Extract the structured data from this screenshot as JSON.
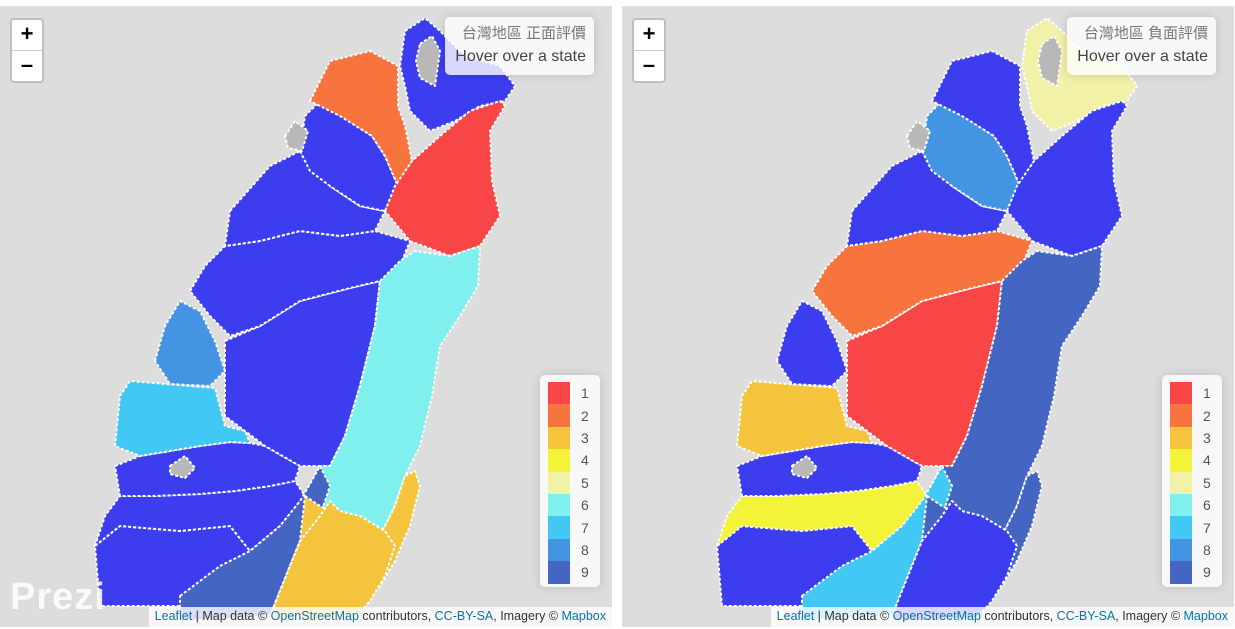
{
  "legend": {
    "items": [
      {
        "label": "1",
        "color": "#f84545"
      },
      {
        "label": "2",
        "color": "#f8743f"
      },
      {
        "label": "3",
        "color": "#f5c43d"
      },
      {
        "label": "4",
        "color": "#f3f33a"
      },
      {
        "label": "5",
        "color": "#f1f1a8"
      },
      {
        "label": "6",
        "color": "#7ff0ee"
      },
      {
        "label": "7",
        "color": "#41c8f5"
      },
      {
        "label": "8",
        "color": "#4394e3"
      },
      {
        "label": "9",
        "color": "#4565c3"
      }
    ]
  },
  "zoom": {
    "in_label": "+",
    "out_label": "–"
  },
  "maps": [
    {
      "id": "left",
      "title": "台灣地區 正面評價",
      "hint": "Hover over a state",
      "watermark": "Prezi",
      "region_colors": {
        "taipei_new": "#3d3df0",
        "taoyuan": "#f8743f",
        "hsinchu_county": "#3d3df0",
        "hsinchu_city": "#b8b8b8",
        "keelung": "#b8b8b8",
        "yilan": "#f84545",
        "miaoli": "#3d3df0",
        "taichung": "#3d3df0",
        "changhua": "#4394e3",
        "nantou": "#3d3df0",
        "yunlin": "#41c8f5",
        "chiayi_county": "#3d3df0",
        "chiayi_city": "#b8b8b8",
        "tainan": "#3d3df0",
        "kaohsiung": "#4565c3",
        "pingtung": "#f5c43d",
        "hualien": "#7ff0ee",
        "taitung": "#f5c43d",
        "unknown": "#3d3df0"
      }
    },
    {
      "id": "right",
      "title": "台灣地區 負面評價",
      "hint": "Hover over a state",
      "watermark": "",
      "region_colors": {
        "taipei_new": "#f1f1a8",
        "taoyuan": "#3d3df0",
        "hsinchu_county": "#4394e3",
        "hsinchu_city": "#b8b8b8",
        "keelung": "#b8b8b8",
        "yilan": "#3d3df0",
        "miaoli": "#3d3df0",
        "taichung": "#f8743f",
        "changhua": "#3d3df0",
        "nantou": "#f84545",
        "yunlin": "#f5c43d",
        "chiayi_county": "#3d3df0",
        "chiayi_city": "#b8b8b8",
        "tainan": "#f3f33a",
        "kaohsiung": "#41c8f5",
        "pingtung": "#3d3df0",
        "hualien": "#4565c3",
        "taitung": "#4565c3",
        "unknown": "#3d3df0"
      }
    }
  ],
  "attribution": {
    "leaflet": "Leaflet",
    "sep1": " | Map data © ",
    "osm": "OpenStreetMap",
    "sep2": " contributors, ",
    "license": "CC-BY-SA",
    "sep3": ", Imagery © ",
    "mapbox": "Mapbox"
  }
}
